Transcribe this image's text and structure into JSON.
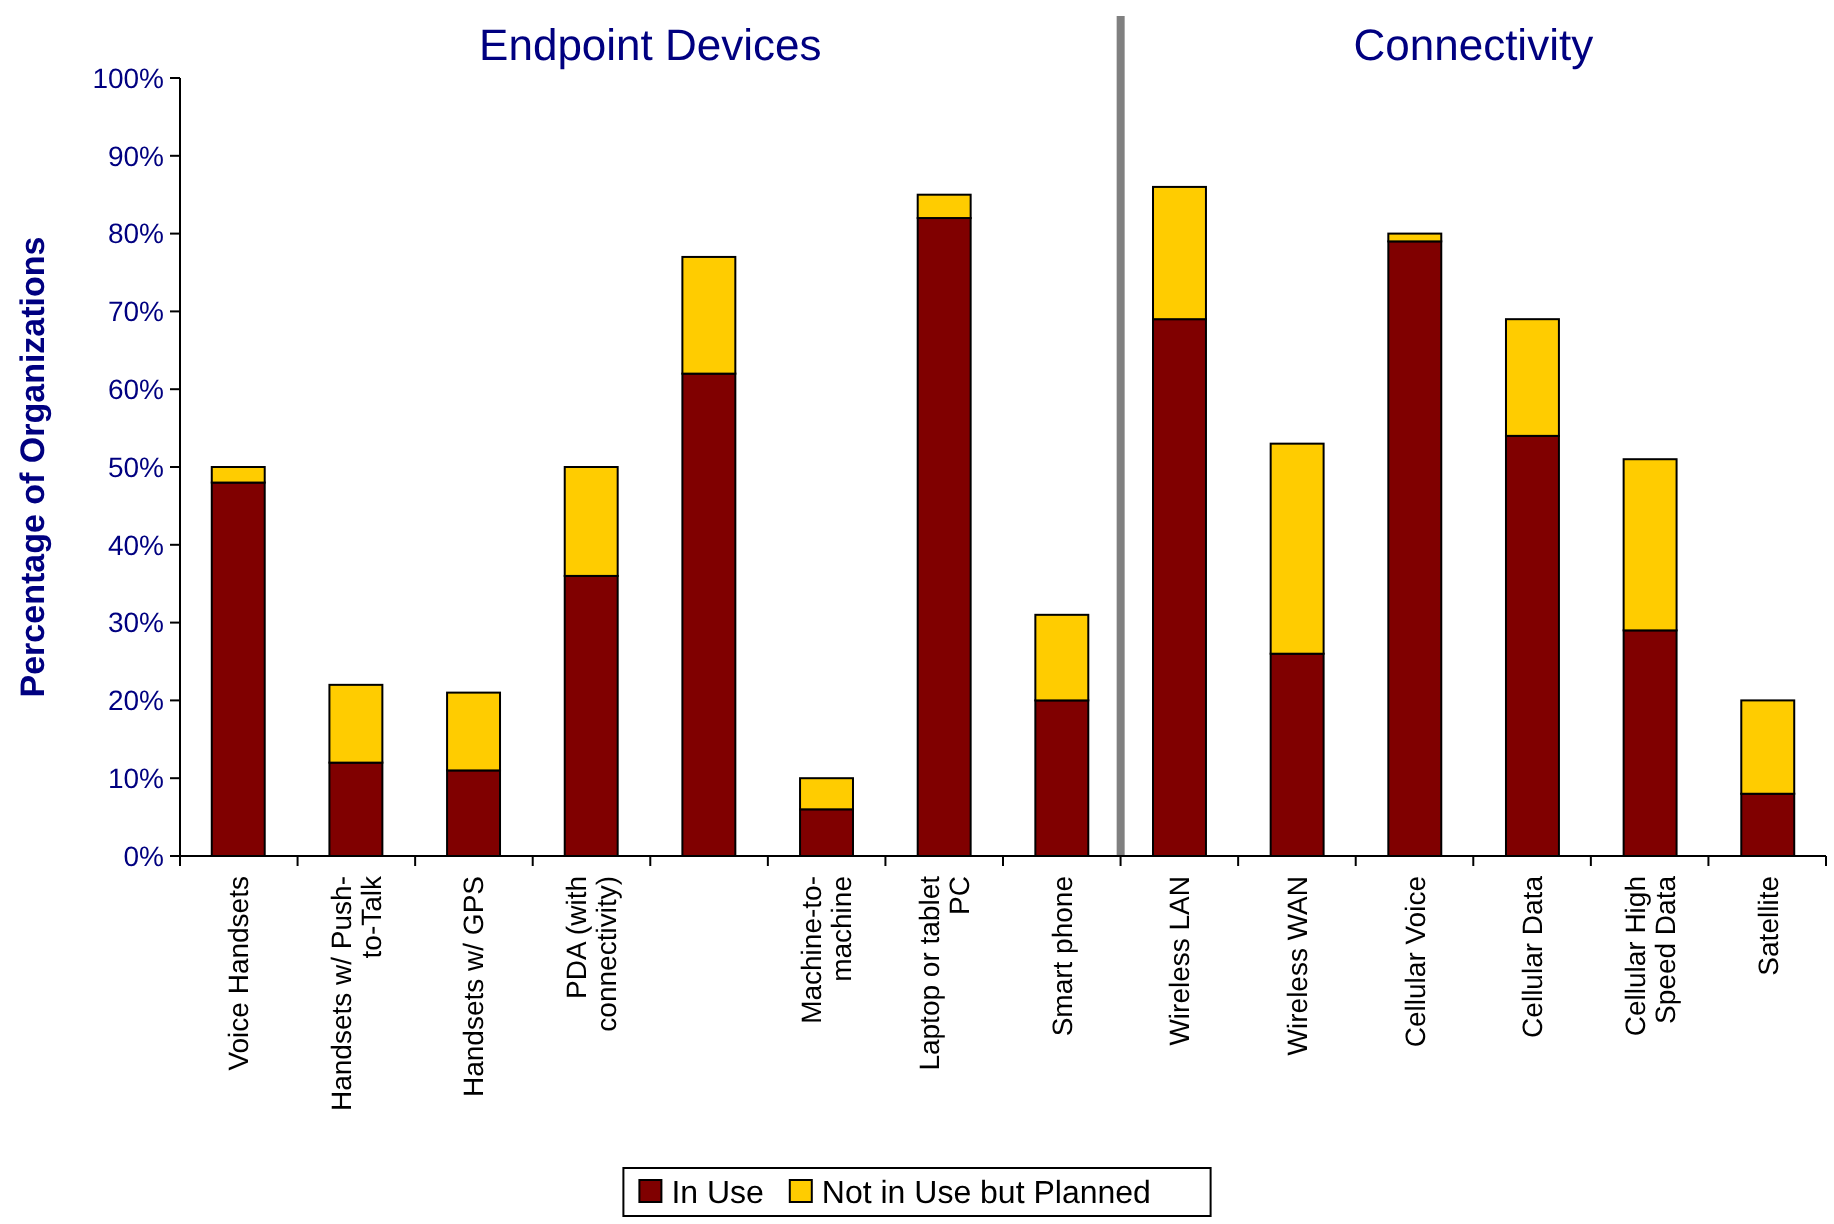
{
  "chart_data": {
    "type": "bar",
    "stacked": true,
    "ylabel": "Percentage of Organizations",
    "categories": [
      "Voice Handsets",
      "Handsets w/ Push-to-Talk",
      "Handsets w/ GPS",
      "PDA (with connectivity)",
      null,
      "Machine-to-machine",
      "Laptop or tablet PC",
      "Smart phone",
      "Wireless LAN",
      "Wireless WAN",
      "Cellular Voice",
      "Cellular Data",
      "Cellular High Speed Data",
      "Satellite"
    ],
    "series": [
      {
        "name": "In Use",
        "color": "#800000",
        "values": [
          48,
          12,
          11,
          36,
          62,
          6,
          82,
          20,
          69,
          26,
          79,
          54,
          29,
          8
        ]
      },
      {
        "name": "Not in Use but Planned",
        "color": "#ffcc00",
        "values": [
          2,
          10,
          10,
          14,
          15,
          4,
          3,
          11,
          17,
          27,
          1,
          15,
          22,
          12
        ]
      }
    ],
    "ylim": [
      0,
      100
    ],
    "yticks": [
      {
        "value": 0,
        "label": "0%"
      },
      {
        "value": 10,
        "label": "10%"
      },
      {
        "value": 20,
        "label": "20%"
      },
      {
        "value": 30,
        "label": "30%"
      },
      {
        "value": 40,
        "label": "40%"
      },
      {
        "value": 50,
        "label": "50%"
      },
      {
        "value": 60,
        "label": "60%"
      },
      {
        "value": 70,
        "label": "70%"
      },
      {
        "value": 80,
        "label": "80%"
      },
      {
        "value": 90,
        "label": "90%"
      },
      {
        "value": 100,
        "label": "100%"
      }
    ],
    "annotations": [
      "Endpoint Devices",
      "Connectivity"
    ],
    "legend": "bottom",
    "grid": false
  }
}
